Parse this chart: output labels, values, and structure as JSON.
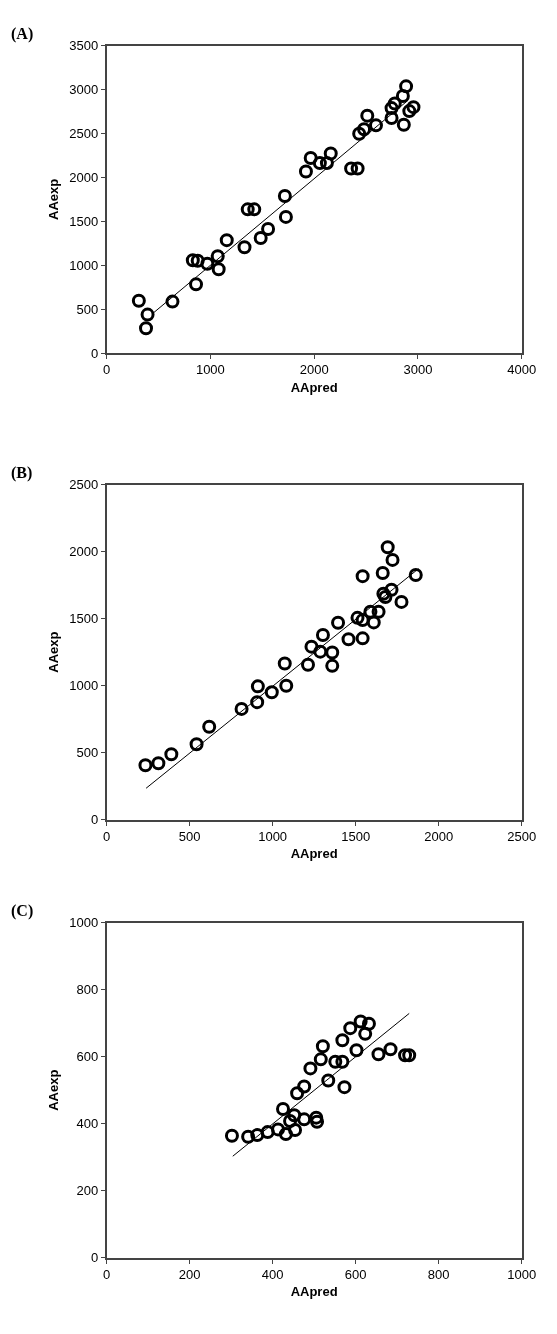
{
  "chart_data": [
    {
      "type": "scatter",
      "title": "(A)",
      "xlabel": "AApred",
      "ylabel": "AAexp",
      "xlim": [
        0,
        4000
      ],
      "ylim": [
        0,
        3500
      ],
      "xticks": [
        0,
        1000,
        2000,
        3000,
        4000
      ],
      "yticks": [
        0,
        500,
        1000,
        1500,
        2000,
        2500,
        3000,
        3500
      ],
      "marker": "circle",
      "series": [
        {
          "color": "#000000",
          "x": [
            311,
            395,
            380,
            635,
            862,
            831,
            878,
            971,
            1071,
            1080,
            1158,
            1329,
            1360,
            1423,
            1485,
            1556,
            1718,
            1728,
            1921,
            1967,
            2055,
            2123,
            2160,
            2356,
            2419,
            2434,
            2481,
            2512,
            2596,
            2746,
            2746,
            2855,
            2886,
            2864,
            2917,
            2957,
            2777
          ],
          "values": [
            596,
            438,
            283,
            586,
            782,
            1057,
            1051,
            1016,
            1102,
            954,
            1285,
            1205,
            1636,
            1636,
            1309,
            1412,
            1787,
            1550,
            2066,
            2220,
            2162,
            2162,
            2272,
            2100,
            2100,
            2496,
            2548,
            2702,
            2592,
            2675,
            2788,
            2926,
            3036,
            2599,
            2754,
            2799,
            2840
          ]
        },
        {
          "type": "line",
          "marker": "none",
          "color": "#000000",
          "x": [
            442,
            2900
          ],
          "values": [
            448,
            2872
          ]
        }
      ]
    },
    {
      "type": "scatter",
      "title": "(B)",
      "xlabel": "AApred",
      "ylabel": "AAexp",
      "xlim": [
        0,
        2500
      ],
      "ylim": [
        0,
        2500
      ],
      "xticks": [
        0,
        500,
        1000,
        1500,
        2000,
        2500
      ],
      "yticks": [
        0,
        500,
        1000,
        1500,
        2000,
        2500
      ],
      "marker": "circle",
      "series": [
        {
          "color": "#000000",
          "x": [
            234,
            312,
            390,
            542,
            618,
            813,
            907,
            911,
            995,
            1073,
            1082,
            1213,
            1234,
            1287,
            1303,
            1359,
            1359,
            1394,
            1457,
            1511,
            1542,
            1542,
            1542,
            1589,
            1609,
            1638,
            1663,
            1667,
            1679,
            1693,
            1716,
            1722,
            1776,
            1862
          ],
          "values": [
            407,
            422,
            489,
            563,
            694,
            827,
            877,
            995,
            951,
            1165,
            1000,
            1156,
            1291,
            1254,
            1378,
            1247,
            1148,
            1469,
            1346,
            1506,
            1353,
            1817,
            1489,
            1551,
            1472,
            1551,
            1840,
            1686,
            1662,
            2032,
            1716,
            1938,
            1625,
            1825
          ]
        },
        {
          "type": "line",
          "marker": "none",
          "color": "#000000",
          "x": [
            238,
            1878
          ],
          "values": [
            235,
            1872
          ]
        }
      ]
    },
    {
      "type": "scatter",
      "title": "(C)",
      "xlabel": "AApred",
      "ylabel": "AAexp",
      "xlim": [
        0,
        1000
      ],
      "ylim": [
        0,
        1000
      ],
      "xticks": [
        0,
        200,
        400,
        600,
        800,
        1000
      ],
      "yticks": [
        0,
        200,
        400,
        600,
        800,
        1000
      ],
      "marker": "circle",
      "series": [
        {
          "color": "#000000",
          "x": [
            302,
            341,
            363,
            388,
            413,
            425,
            432,
            442,
            452,
            454,
            459,
            476,
            476,
            491,
            505,
            507,
            516,
            521,
            534,
            551,
            568,
            568,
            573,
            587,
            602,
            612,
            623,
            632,
            655,
            684,
            719,
            729
          ],
          "values": [
            364,
            361,
            366,
            375,
            383,
            444,
            369,
            408,
            425,
            381,
            491,
            413,
            511,
            565,
            418,
            406,
            592,
            631,
            529,
            585,
            649,
            585,
            509,
            685,
            619,
            705,
            668,
            698,
            607,
            622,
            604,
            604
          ]
        },
        {
          "type": "line",
          "marker": "none",
          "color": "#000000",
          "x": [
            304,
            729
          ],
          "values": [
            303,
            729
          ]
        }
      ]
    }
  ]
}
